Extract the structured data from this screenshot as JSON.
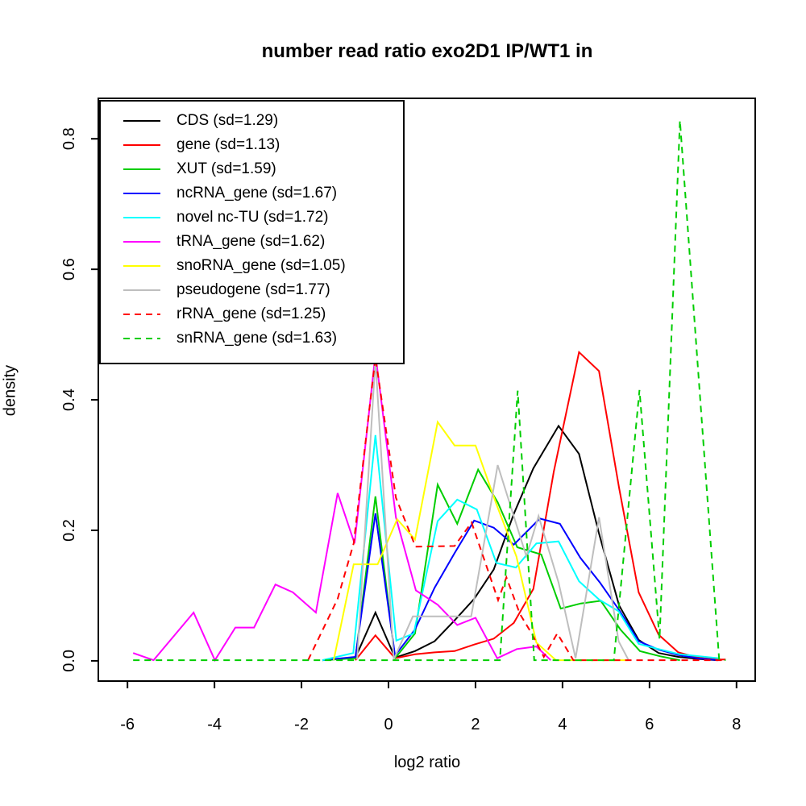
{
  "title": "number read ratio exo2D1 IP/WT1 in",
  "chart_data": {
    "type": "line",
    "title": "number read ratio exo2D1 IP/WT1 in",
    "xlabel": "log2 ratio",
    "ylabel": "density",
    "xlim": [
      -6.67,
      8.43
    ],
    "ylim": [
      -0.031,
      0.862
    ],
    "x_ticks": [
      "-6",
      "-4",
      "-2",
      "0",
      "2",
      "4",
      "6",
      "8"
    ],
    "x_tick_values": [
      -6,
      -4,
      -2,
      0,
      2,
      4,
      6,
      8
    ],
    "y_ticks": [
      "0.0",
      "0.2",
      "0.4",
      "0.6",
      "0.8"
    ],
    "y_tick_values": [
      0.0,
      0.2,
      0.4,
      0.6,
      0.8
    ],
    "grid": false,
    "legend_position": "top-left",
    "series": [
      {
        "name": "CDS",
        "sd": "1.29",
        "label": "CDS (sd=1.29)",
        "color": "#000000",
        "dash": "solid",
        "x": [
          -1.52,
          -0.76,
          -0.3,
          0.15,
          0.61,
          1.06,
          1.52,
          1.97,
          2.42,
          2.88,
          3.33,
          3.91,
          4.38,
          4.84,
          5.3,
          5.75,
          6.21,
          6.66,
          7.11,
          7.57
        ],
        "y": [
          0.001,
          0.005,
          0.074,
          0.005,
          0.015,
          0.03,
          0.062,
          0.095,
          0.14,
          0.225,
          0.295,
          0.36,
          0.317,
          0.195,
          0.085,
          0.032,
          0.012,
          0.006,
          0.003,
          0.001
        ]
      },
      {
        "name": "gene",
        "sd": "1.13",
        "label": "gene (sd=1.13)",
        "color": "#ff0000",
        "dash": "solid",
        "x": [
          -0.76,
          -0.3,
          0.15,
          0.61,
          1.06,
          1.52,
          1.97,
          2.42,
          2.88,
          3.33,
          3.8,
          4.38,
          4.84,
          5.3,
          5.75,
          6.21,
          6.66,
          7.11,
          7.57,
          7.75
        ],
        "y": [
          0.001,
          0.039,
          0.004,
          0.01,
          0.013,
          0.015,
          0.025,
          0.034,
          0.058,
          0.11,
          0.29,
          0.473,
          0.444,
          0.265,
          0.105,
          0.04,
          0.013,
          0.005,
          0.002,
          0.002
        ]
      },
      {
        "name": "XUT",
        "sd": "1.59",
        "label": "XUT (sd=1.59)",
        "color": "#00cd00",
        "dash": "solid",
        "x": [
          -1.52,
          -0.76,
          -0.3,
          0.15,
          0.61,
          1.13,
          1.58,
          2.06,
          2.51,
          2.96,
          3.51,
          3.96,
          4.42,
          4.88,
          5.33,
          5.78,
          6.24,
          6.7
        ],
        "y": [
          0.001,
          0.004,
          0.252,
          0.004,
          0.042,
          0.27,
          0.21,
          0.293,
          0.243,
          0.174,
          0.163,
          0.08,
          0.088,
          0.092,
          0.048,
          0.015,
          0.007,
          0.001
        ]
      },
      {
        "name": "ncRNA_gene",
        "sd": "1.67",
        "label": "ncRNA_gene (sd=1.67)",
        "color": "#0000ff",
        "dash": "solid",
        "x": [
          -1.52,
          -0.76,
          -0.3,
          0.15,
          0.61,
          1.06,
          1.52,
          1.97,
          2.42,
          2.88,
          3.48,
          3.94,
          4.41,
          4.86,
          5.3,
          5.75,
          6.21,
          6.66,
          7.11,
          7.57
        ],
        "y": [
          0.001,
          0.006,
          0.226,
          0.008,
          0.048,
          0.112,
          0.165,
          0.215,
          0.204,
          0.178,
          0.218,
          0.21,
          0.158,
          0.12,
          0.078,
          0.03,
          0.017,
          0.009,
          0.004,
          0.001
        ]
      },
      {
        "name": "novel nc-TU",
        "sd": "1.72",
        "label": "novel nc-TU (sd=1.72)",
        "color": "#00ffff",
        "dash": "solid",
        "x": [
          -1.52,
          -0.81,
          -0.3,
          0.18,
          0.58,
          1.13,
          1.58,
          2.03,
          2.48,
          2.93,
          3.4,
          3.91,
          4.38,
          4.84,
          5.29,
          5.75,
          6.21,
          6.7,
          7.15,
          7.6
        ],
        "y": [
          0.001,
          0.012,
          0.346,
          0.031,
          0.042,
          0.214,
          0.247,
          0.232,
          0.15,
          0.143,
          0.18,
          0.183,
          0.122,
          0.094,
          0.076,
          0.026,
          0.018,
          0.01,
          0.007,
          0.004
        ]
      },
      {
        "name": "tRNA_gene",
        "sd": "1.62",
        "label": "tRNA_gene (sd=1.62)",
        "color": "#ff00ff",
        "dash": "solid",
        "x": [
          -5.87,
          -5.4,
          -4.48,
          -3.99,
          -3.52,
          -3.09,
          -2.6,
          -2.2,
          -1.67,
          -1.17,
          -0.78,
          -0.3,
          0.17,
          0.63,
          1.13,
          1.58,
          2.0,
          2.5,
          2.95,
          3.4,
          3.73
        ],
        "y": [
          0.012,
          0.001,
          0.074,
          0.001,
          0.051,
          0.051,
          0.117,
          0.105,
          0.074,
          0.257,
          0.18,
          0.47,
          0.22,
          0.108,
          0.086,
          0.055,
          0.066,
          0.004,
          0.018,
          0.022,
          0.001
        ]
      },
      {
        "name": "snoRNA_gene",
        "sd": "1.05",
        "label": "snoRNA_gene (sd=1.05)",
        "color": "#ffff00",
        "dash": "solid",
        "x": [
          -1.26,
          -0.8,
          -0.25,
          0.2,
          0.61,
          1.13,
          1.52,
          2.0,
          2.48,
          2.94,
          3.4,
          3.85,
          5.5
        ],
        "y": [
          0.001,
          0.148,
          0.148,
          0.217,
          0.186,
          0.366,
          0.33,
          0.33,
          0.24,
          0.16,
          0.028,
          0.001,
          0.001
        ]
      },
      {
        "name": "pseudogene",
        "sd": "1.77",
        "label": "pseudogene (sd=1.77)",
        "color": "#bebebe",
        "dash": "solid",
        "x": [
          -0.72,
          -0.3,
          0.12,
          0.56,
          1.9,
          2.51,
          3.17,
          3.45,
          3.91,
          4.3,
          4.84,
          5.29,
          5.52
        ],
        "y": [
          0.002,
          0.462,
          0.002,
          0.068,
          0.068,
          0.3,
          0.16,
          0.222,
          0.12,
          0.004,
          0.22,
          0.03,
          0.001
        ]
      },
      {
        "name": "rRNA_gene",
        "sd": "1.25",
        "label": "rRNA_gene (sd=1.25)",
        "color": "#ff0000",
        "dash": "dashed",
        "x": [
          -1.85,
          -1.17,
          -0.8,
          -0.3,
          0.17,
          0.62,
          1.52,
          1.91,
          2.52,
          2.71,
          3.02,
          3.3,
          3.57,
          3.88,
          4.25,
          7.75
        ],
        "y": [
          0.001,
          0.095,
          0.18,
          0.465,
          0.25,
          0.175,
          0.176,
          0.212,
          0.093,
          0.128,
          0.072,
          0.041,
          0.006,
          0.042,
          0.001,
          0.001
        ]
      },
      {
        "name": "snRNA_gene",
        "sd": "1.63",
        "label": "snRNA_gene (sd=1.63)",
        "color": "#00cd00",
        "dash": "dashed",
        "x": [
          -5.87,
          2.56,
          2.97,
          3.35,
          5.18,
          5.77,
          6.23,
          6.7,
          7.6,
          7.75
        ],
        "y": [
          0.001,
          0.001,
          0.414,
          0.001,
          0.001,
          0.415,
          0.033,
          0.828,
          0.003,
          0.001
        ]
      }
    ]
  }
}
